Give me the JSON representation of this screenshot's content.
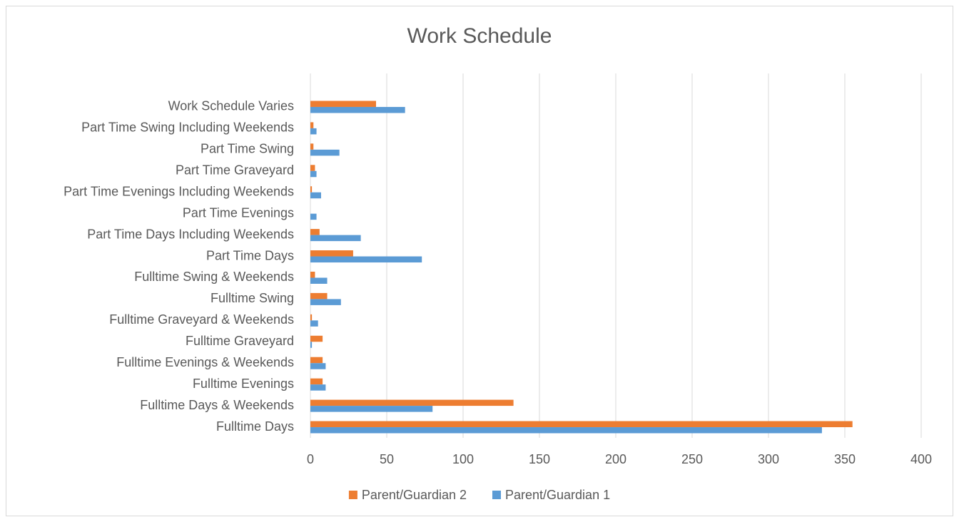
{
  "chart_data": {
    "type": "barh",
    "title": "Work Schedule",
    "categories": [
      "Fulltime Days",
      "Fulltime Days & Weekends",
      "Fulltime Evenings",
      "Fulltime Evenings & Weekends",
      "Fulltime Graveyard",
      "Fulltime Graveyard & Weekends",
      "Fulltime Swing",
      "Fulltime Swing & Weekends",
      "Part Time Days",
      "Part Time Days Including Weekends",
      "Part Time Evenings",
      "Part Time Evenings Including Weekends",
      "Part Time Graveyard",
      "Part Time Swing",
      "Part Time Swing Including Weekends",
      "Work Schedule Varies"
    ],
    "series": [
      {
        "name": "Parent/Guardian 2",
        "color": "#ed7d31",
        "values": [
          355,
          133,
          8,
          8,
          8,
          1,
          11,
          3,
          28,
          6,
          0,
          1,
          3,
          2,
          2,
          43
        ]
      },
      {
        "name": "Parent/Guardian 1",
        "color": "#5b9bd5",
        "values": [
          335,
          80,
          10,
          10,
          1,
          5,
          20,
          11,
          73,
          33,
          4,
          7,
          4,
          19,
          4,
          62
        ]
      }
    ],
    "xlim": [
      0,
      400
    ],
    "xticks": [
      0,
      50,
      100,
      150,
      200,
      250,
      300,
      350,
      400
    ],
    "grid": true,
    "legend": "bottom"
  }
}
